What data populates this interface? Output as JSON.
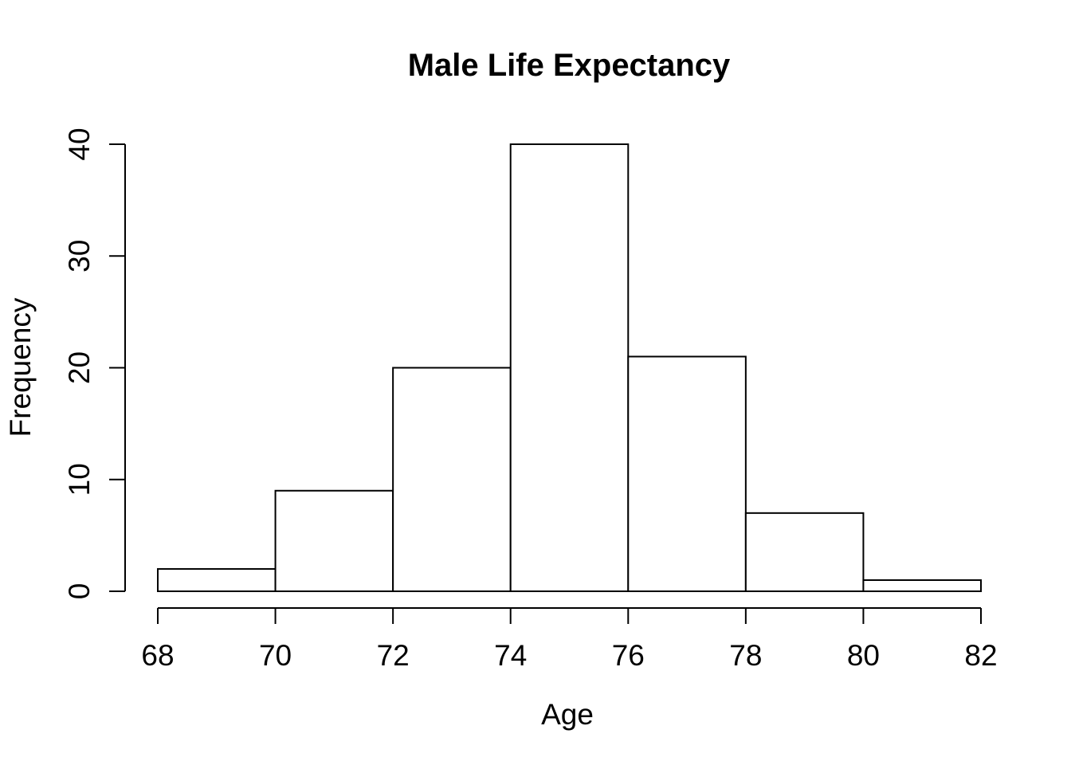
{
  "figure": {
    "background_color": "#ffffff",
    "foreground_color": "#000000"
  },
  "chart_data": {
    "type": "bar",
    "subtype": "histogram",
    "title": "Male Life Expectancy",
    "xlabel": "Age",
    "ylabel": "Frequency",
    "bin_edges": [
      68,
      70,
      72,
      74,
      76,
      78,
      80,
      82
    ],
    "counts": [
      2,
      9,
      20,
      40,
      21,
      7,
      1
    ],
    "x_ticks": [
      68,
      70,
      72,
      74,
      76,
      78,
      80,
      82
    ],
    "y_ticks": [
      0,
      10,
      20,
      30,
      40
    ],
    "xlim": [
      68,
      82
    ],
    "ylim": [
      0,
      40
    ],
    "grid": false,
    "legend_position": "none",
    "bar_fill": "#ffffff",
    "line_color": "#000000"
  }
}
